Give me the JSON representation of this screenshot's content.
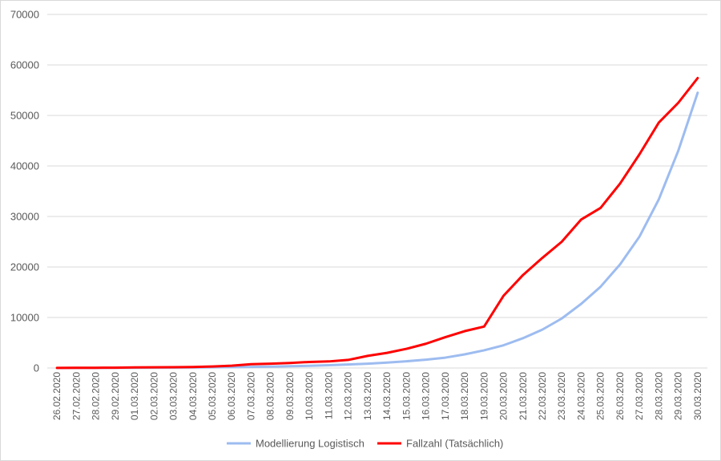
{
  "chart_data": {
    "type": "line",
    "title": "",
    "xlabel": "",
    "ylabel": "",
    "ylim": [
      0,
      70000
    ],
    "yticks": [
      0,
      10000,
      20000,
      30000,
      40000,
      50000,
      60000,
      70000
    ],
    "grid": true,
    "legend_position": "bottom",
    "x": [
      "26.02.2020",
      "27.02.2020",
      "28.02.2020",
      "29.02.2020",
      "01.03.2020",
      "02.03.2020",
      "03.03.2020",
      "04.03.2020",
      "05.03.2020",
      "06.03.2020",
      "07.03.2020",
      "08.03.2020",
      "09.03.2020",
      "10.03.2020",
      "11.03.2020",
      "12.03.2020",
      "13.03.2020",
      "14.03.2020",
      "15.03.2020",
      "16.03.2020",
      "17.03.2020",
      "18.03.2020",
      "19.03.2020",
      "20.03.2020",
      "21.03.2020",
      "22.03.2020",
      "23.03.2020",
      "24.03.2020",
      "25.03.2020",
      "26.03.2020",
      "27.03.2020",
      "28.03.2020",
      "29.03.2020",
      "30.03.2020"
    ],
    "series": [
      {
        "name": "Modellierung Logistisch",
        "color": "#9dbcf0",
        "values": [
          10,
          15,
          20,
          30,
          40,
          55,
          75,
          100,
          130,
          170,
          220,
          280,
          350,
          440,
          550,
          690,
          860,
          1070,
          1330,
          1650,
          2050,
          2700,
          3500,
          4500,
          5900,
          7600,
          9800,
          12700,
          16100,
          20500,
          26000,
          33400,
          43000,
          54500
        ]
      },
      {
        "name": "Fallzahl (Tatsächlich)",
        "color": "#ff0000",
        "values": [
          20,
          30,
          50,
          60,
          120,
          130,
          160,
          200,
          300,
          450,
          750,
          850,
          1000,
          1200,
          1300,
          1600,
          2400,
          3000,
          3800,
          4800,
          6100,
          7300,
          8200,
          14300,
          18400,
          21800,
          25000,
          29400,
          31700,
          36500,
          42300,
          48600,
          52500,
          57400
        ]
      }
    ]
  }
}
